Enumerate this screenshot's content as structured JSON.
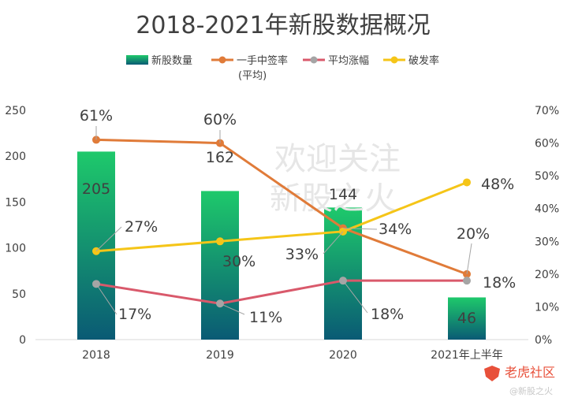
{
  "chart_data": {
    "type": "bar",
    "title": "2018-2021年新股数据概况",
    "categories": [
      "2018",
      "2019",
      "2020",
      "2021年上半年"
    ],
    "y_left": {
      "min": 0,
      "max": 250,
      "ticks": [
        0,
        50,
        100,
        150,
        200,
        250
      ]
    },
    "y_right": {
      "min": 0,
      "max": 70,
      "unit": "%",
      "ticks": [
        0,
        10,
        20,
        30,
        40,
        50,
        60,
        70
      ]
    },
    "legend_position": "top",
    "grid": false,
    "series": [
      {
        "name": "新股数量",
        "type": "bar",
        "axis": "left",
        "color": "#1ec96b",
        "color_bottom": "#0a5a74",
        "values": [
          205,
          162,
          144,
          46
        ],
        "labels": [
          "205",
          "162",
          "144",
          "46"
        ]
      },
      {
        "name": "一手中签率",
        "name_line2": "(平均)",
        "type": "line",
        "axis": "right",
        "color": "#e07b39",
        "values": [
          61,
          60,
          34,
          20
        ],
        "labels": [
          "61%",
          "60%",
          "34%",
          "20%"
        ]
      },
      {
        "name": "平均涨幅",
        "type": "line",
        "axis": "right",
        "color": "#d9596b",
        "marker_color": "#a5a5a5",
        "values": [
          17,
          11,
          18,
          18
        ],
        "labels": [
          "17%",
          "11%",
          "18%",
          "18%"
        ]
      },
      {
        "name": "破发率",
        "type": "line",
        "axis": "right",
        "color": "#f5c518",
        "values": [
          27,
          30,
          33,
          48
        ],
        "labels": [
          "27%",
          "30%",
          "33%",
          "48%"
        ]
      }
    ]
  },
  "watermark": {
    "line1": "欢迎关注",
    "line2": "新股之火"
  },
  "footer": {
    "brand": "老虎社区",
    "handle": "@新股之火"
  }
}
